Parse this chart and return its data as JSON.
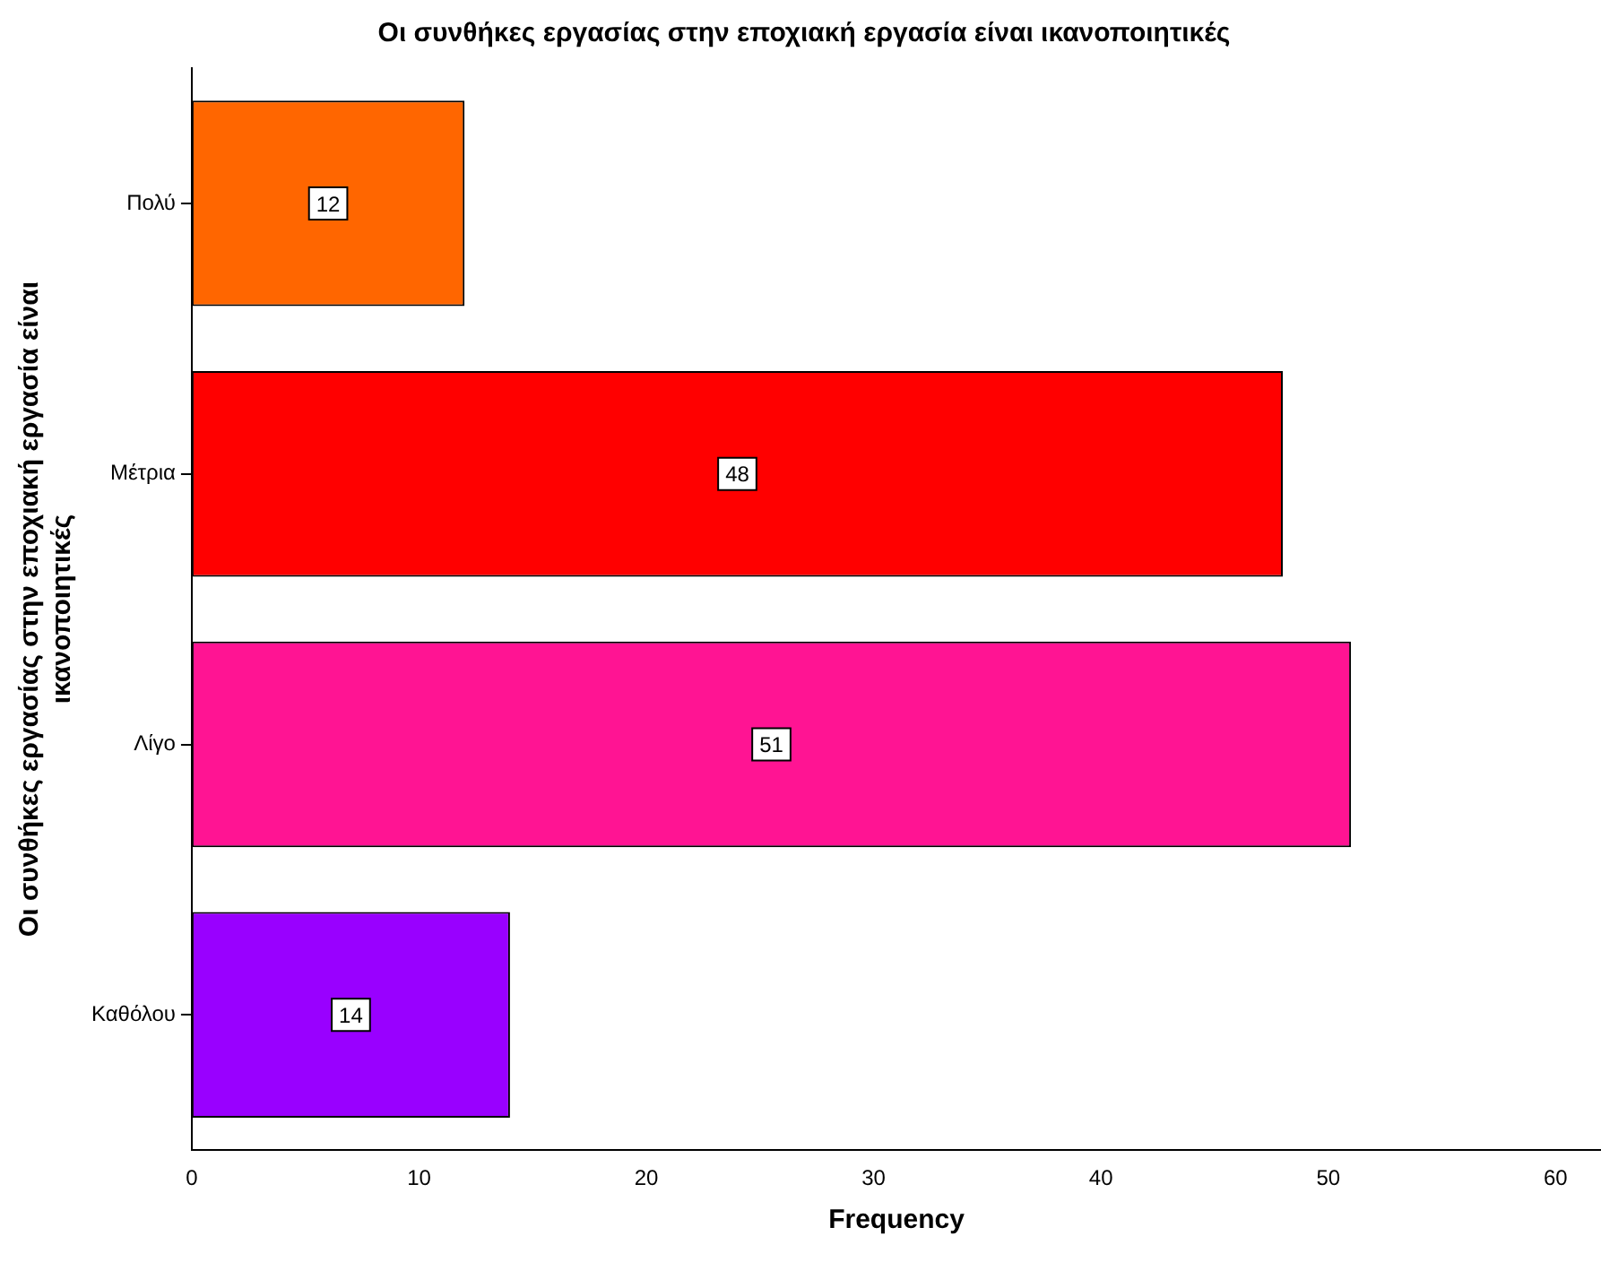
{
  "chart_data": {
    "type": "bar",
    "orientation": "horizontal",
    "title": "Οι συνθήκες εργασίας στην εποχιακή εργασία είναι ικανοποιητικές",
    "xlabel": "Frequency",
    "ylabel": "Οι συνθήκες εργασίας στην εποχιακή εργασία είναι ικανοποιητικές",
    "categories": [
      "Πολύ",
      "Μέτρια",
      "Λίγο",
      "Καθόλου"
    ],
    "values": [
      12,
      48,
      51,
      14
    ],
    "colors": [
      "#ff6600",
      "#ff0000",
      "#ff1493",
      "#9900ff"
    ],
    "xlim": [
      0,
      62
    ],
    "xticks": [
      0,
      10,
      20,
      30,
      40,
      50,
      60
    ],
    "grid": false,
    "legend": false,
    "data_labels": true
  }
}
